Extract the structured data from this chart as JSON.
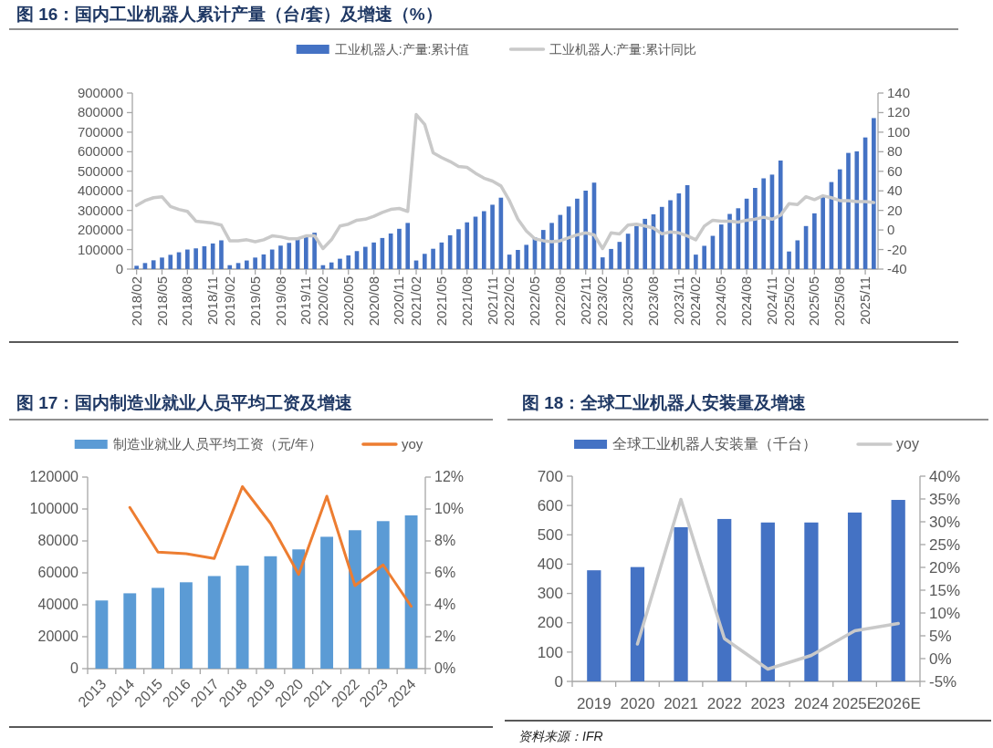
{
  "chart_data": [
    {
      "type": "bar",
      "title": "图 16：国内工业机器人累计产量（台/套）及增速（%）",
      "legend": "top",
      "categories": [
        "2018/02",
        null,
        null,
        "2018/05",
        null,
        null,
        "2018/08",
        null,
        null,
        "2018/11",
        null,
        "2019/02",
        null,
        null,
        "2019/05",
        null,
        null,
        "2019/08",
        null,
        null,
        "2019/11",
        null,
        "2020/02",
        null,
        null,
        "2020/05",
        null,
        null,
        "2020/08",
        null,
        null,
        "2020/11",
        null,
        "2021/02",
        null,
        null,
        "2021/05",
        null,
        null,
        "2021/08",
        null,
        null,
        "2021/11",
        null,
        "2022/02",
        null,
        null,
        "2022/05",
        null,
        null,
        "2022/08",
        null,
        null,
        "2022/11",
        null,
        "2023/02",
        null,
        null,
        "2023/05",
        null,
        null,
        "2023/08",
        null,
        null,
        "2023/11",
        null,
        "2024/02",
        null,
        null,
        "2024/05",
        null,
        null,
        "2024/08",
        null,
        null,
        "2024/11",
        null,
        "2025/02",
        null,
        null,
        "2025/05",
        null,
        null,
        "2025/08",
        null,
        null,
        "2025/11",
        null
      ],
      "ylim": [
        0,
        900000
      ],
      "yticks": [
        0,
        100000,
        200000,
        300000,
        400000,
        500000,
        600000,
        700000,
        800000,
        900000
      ],
      "y2lim": [
        -40,
        140
      ],
      "y2ticks": [
        -40,
        -20,
        0,
        20,
        40,
        60,
        80,
        100,
        120,
        140
      ],
      "series": [
        {
          "name": "工业机器人:产量:累计值",
          "color": "#4472c4",
          "values": [
            17000,
            31000,
            45000,
            59000,
            73000,
            86000,
            100000,
            106000,
            117000,
            131000,
            147000,
            20000,
            31000,
            44000,
            59000,
            75000,
            100000,
            120000,
            134000,
            156000,
            164000,
            186000,
            20000,
            34000,
            53000,
            70000,
            92000,
            114000,
            136000,
            159000,
            182000,
            206000,
            236000,
            44000,
            78000,
            104000,
            136000,
            173000,
            204000,
            239000,
            268000,
            296000,
            329000,
            365000,
            74000,
            98000,
            124000,
            162000,
            200000,
            236000,
            277000,
            320000,
            360000,
            401000,
            442000,
            60000,
            103000,
            139000,
            181000,
            220000,
            257000,
            280000,
            318000,
            352000,
            387000,
            429000,
            74000,
            119000,
            170000,
            228000,
            282000,
            311000,
            360000,
            415000,
            464000,
            483000,
            555000,
            90000,
            147000,
            220000,
            285000,
            369000,
            445000,
            510000,
            594000,
            602000,
            673000,
            772000
          ]
        },
        {
          "name": "工业机器人:产量:累计同比",
          "type": "line",
          "axis": "y2",
          "color": "#c9c9c9",
          "values": [
            25,
            30,
            33,
            34,
            24,
            21,
            19,
            9,
            8,
            7,
            5,
            -11,
            -11,
            -10,
            -12,
            -10,
            -6,
            -7,
            -9,
            -9,
            -6,
            -6,
            -19,
            -10,
            4,
            6,
            10,
            11,
            14,
            18,
            21,
            22,
            19,
            118,
            108,
            79,
            74,
            70,
            65,
            64,
            58,
            53,
            50,
            45,
            30,
            11,
            -1,
            -9,
            -11,
            -12,
            -11,
            -8,
            -5,
            -3,
            -5,
            -19,
            -3,
            -4,
            5,
            6,
            4,
            2,
            -4,
            -2,
            -3,
            -6,
            -10,
            4,
            10,
            9,
            9,
            8,
            10,
            11,
            13,
            11,
            15,
            27,
            26,
            34,
            31,
            35,
            33,
            30,
            30,
            29,
            29,
            28
          ]
        }
      ]
    },
    {
      "type": "bar",
      "title": "图 17：国内制造业就业人员平均工资及增速",
      "legend": "top",
      "categories": [
        "2013",
        "2014",
        "2015",
        "2016",
        "2017",
        "2018",
        "2019",
        "2020",
        "2021",
        "2022",
        "2023",
        "2024"
      ],
      "ylim": [
        0,
        120000
      ],
      "yticks": [
        0,
        20000,
        40000,
        60000,
        80000,
        100000,
        120000
      ],
      "y2lim": [
        0,
        12
      ],
      "y2ticks": [
        {
          "value": 0,
          "label": "0%"
        },
        {
          "value": 2,
          "label": "2%"
        },
        {
          "value": 4,
          "label": "4%"
        },
        {
          "value": 6,
          "label": "6%"
        },
        {
          "value": 8,
          "label": "8%"
        },
        {
          "value": 10,
          "label": "10%"
        },
        {
          "value": 12,
          "label": "12%"
        }
      ],
      "series": [
        {
          "name": "制造业就业人员平均工资（元/年）",
          "color": "#5b9bd5",
          "values": [
            42700,
            47200,
            50600,
            54100,
            58000,
            64500,
            70400,
            74700,
            82600,
            86700,
            92400,
            96000
          ]
        },
        {
          "name": "yoy",
          "type": "line",
          "axis": "y2",
          "color": "#ed7d31",
          "values": [
            null,
            10.1,
            7.3,
            7.2,
            6.9,
            11.4,
            9.1,
            5.9,
            10.8,
            5.2,
            6.5,
            3.9
          ]
        }
      ]
    },
    {
      "type": "bar",
      "title": "图 18：全球工业机器人安装量及增速",
      "legend": "top",
      "categories": [
        "2019",
        "2020",
        "2021",
        "2022",
        "2023",
        "2024",
        "2025E",
        "2026E"
      ],
      "ylim": [
        0,
        700
      ],
      "yticks": [
        0,
        100,
        200,
        300,
        400,
        500,
        600,
        700
      ],
      "y2lim": [
        -5,
        40
      ],
      "y2ticks": [
        {
          "value": -5,
          "label": "-5%"
        },
        {
          "value": 0,
          "label": "0%"
        },
        {
          "value": 5,
          "label": "5%"
        },
        {
          "value": 10,
          "label": "10%"
        },
        {
          "value": 15,
          "label": "15%"
        },
        {
          "value": 20,
          "label": "20%"
        },
        {
          "value": 25,
          "label": "25%"
        },
        {
          "value": 30,
          "label": "30%"
        },
        {
          "value": 35,
          "label": "35%"
        },
        {
          "value": 40,
          "label": "40%"
        }
      ],
      "annotations": [
        "资料来源：IFR"
      ],
      "series": [
        {
          "name": "全球工业机器人安装量（千台）",
          "color": "#4472c4",
          "values": [
            379,
            390,
            526,
            554,
            542,
            542,
            576,
            619
          ]
        },
        {
          "name": "yoy",
          "type": "line",
          "axis": "y2",
          "color": "#c9c9c9",
          "values": [
            null,
            3.2,
            34.9,
            4.4,
            -2.3,
            0.7,
            6.1,
            7.7
          ]
        }
      ]
    }
  ]
}
